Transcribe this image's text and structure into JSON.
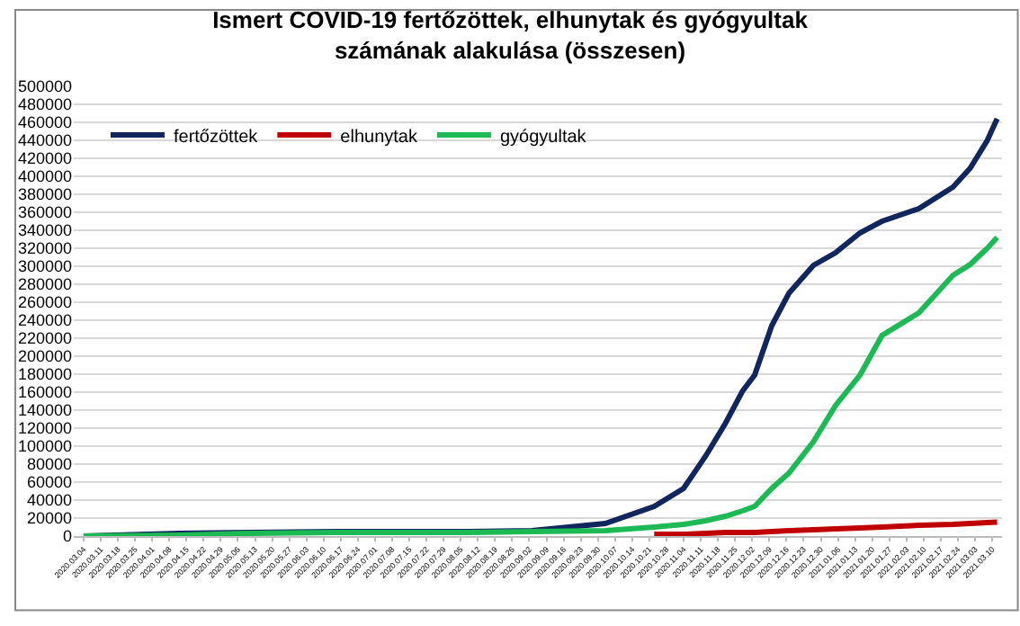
{
  "chart_data": {
    "type": "line",
    "title": "Ismert COVID-19 fertőzöttek, elhunytak és gyógyultak\nszámának alakulása (összesen)",
    "x": [
      "2020-03-04",
      "2020-04-12",
      "2020-05-11",
      "2020-06-15",
      "2020-08-08",
      "2020-09-03",
      "2020-10-03",
      "2020-10-23",
      "2020-11-04",
      "2020-11-13",
      "2020-11-21",
      "2020-11-28",
      "2020-12-03",
      "2020-12-10",
      "2020-12-17",
      "2020-12-27",
      "2021-01-05",
      "2021-01-15",
      "2021-01-24",
      "2021-02-08",
      "2021-02-22",
      "2021-03-01",
      "2021-03-08",
      "2021-03-12"
    ],
    "series": [
      {
        "name": "fertőzöttek",
        "color": "#12265e",
        "values": [
          0,
          3000,
          4000,
          5000,
          5000,
          6000,
          14000,
          33000,
          53000,
          89000,
          125000,
          161000,
          179000,
          234000,
          270000,
          301000,
          315000,
          337000,
          350000,
          364000,
          388000,
          409000,
          440000,
          464000
        ]
      },
      {
        "name": "elhunytak",
        "color": "#c00000",
        "values": [
          null,
          null,
          null,
          null,
          null,
          null,
          null,
          2000,
          2000,
          3000,
          4000,
          4000,
          4000,
          5000,
          6000,
          7000,
          8000,
          9000,
          10000,
          12000,
          13000,
          14000,
          15000,
          15500
        ]
      },
      {
        "name": "gyógyultak",
        "color": "#1db954",
        "values": [
          0,
          1000,
          3000,
          4000,
          4000,
          5000,
          6000,
          10000,
          13000,
          17000,
          22000,
          28000,
          33000,
          53000,
          70000,
          105000,
          145000,
          179000,
          223000,
          248000,
          290000,
          302000,
          320000,
          332000
        ]
      }
    ],
    "xlim": [
      "2020-02-29",
      "2021-03-14"
    ],
    "xticks": [
      {
        "value": "2020-03-04",
        "label": "2020.03.04"
      },
      {
        "value": "2020-03-11",
        "label": "2020.03.11"
      },
      {
        "value": "2020-03-18",
        "label": "2020.03.18"
      },
      {
        "value": "2020-03-25",
        "label": "2020.03.25"
      },
      {
        "value": "2020-04-01",
        "label": "2020.04.01"
      },
      {
        "value": "2020-04-08",
        "label": "2020.04.08"
      },
      {
        "value": "2020-04-15",
        "label": "2020.04.15"
      },
      {
        "value": "2020-04-22",
        "label": "2020.04.22"
      },
      {
        "value": "2020-04-29",
        "label": "2020.04.29"
      },
      {
        "value": "2020-05-06",
        "label": "2020.05.06"
      },
      {
        "value": "2020-05-13",
        "label": "2020.05.13"
      },
      {
        "value": "2020-05-20",
        "label": "2020.05.20"
      },
      {
        "value": "2020-05-27",
        "label": "2020.05.27"
      },
      {
        "value": "2020-06-03",
        "label": "2020.06.03"
      },
      {
        "value": "2020-06-10",
        "label": "2020.06.10"
      },
      {
        "value": "2020-06-17",
        "label": "2020.06.17"
      },
      {
        "value": "2020-06-24",
        "label": "2020.06.24"
      },
      {
        "value": "2020-07-01",
        "label": "2020.07.01"
      },
      {
        "value": "2020-07-08",
        "label": "2020.07.08"
      },
      {
        "value": "2020-07-15",
        "label": "2020.07.15"
      },
      {
        "value": "2020-07-22",
        "label": "2020.07.22"
      },
      {
        "value": "2020-07-29",
        "label": "2020.07.29"
      },
      {
        "value": "2020-08-05",
        "label": "2020.08.05"
      },
      {
        "value": "2020-08-12",
        "label": "2020.08.12"
      },
      {
        "value": "2020-08-19",
        "label": "2020.08.19"
      },
      {
        "value": "2020-08-26",
        "label": "2020.08.26"
      },
      {
        "value": "2020-09-02",
        "label": "2020.09.02"
      },
      {
        "value": "2020-09-09",
        "label": "2020.09.09"
      },
      {
        "value": "2020-09-16",
        "label": "2020.09.16"
      },
      {
        "value": "2020-09-23",
        "label": "2020.09.23"
      },
      {
        "value": "2020-09-30",
        "label": "2020.09.30"
      },
      {
        "value": "2020-10-07",
        "label": "2020.10.07"
      },
      {
        "value": "2020-10-14",
        "label": "2020.10.14"
      },
      {
        "value": "2020-10-21",
        "label": "2020.10.21"
      },
      {
        "value": "2020-10-28",
        "label": "2020.10.28"
      },
      {
        "value": "2020-11-04",
        "label": "2020.11.04"
      },
      {
        "value": "2020-11-11",
        "label": "2020.11.11"
      },
      {
        "value": "2020-11-18",
        "label": "2020.11.18"
      },
      {
        "value": "2020-11-25",
        "label": "2020.11.25"
      },
      {
        "value": "2020-12-02",
        "label": "2020.12.02"
      },
      {
        "value": "2020-12-09",
        "label": "2020.12.09"
      },
      {
        "value": "2020-12-16",
        "label": "2020.12.16"
      },
      {
        "value": "2020-12-23",
        "label": "2020.12.23"
      },
      {
        "value": "2020-12-30",
        "label": "2020.12.30"
      },
      {
        "value": "2021-01-06",
        "label": "2021.01.06"
      },
      {
        "value": "2021-01-13",
        "label": "2021.01.13"
      },
      {
        "value": "2021-01-20",
        "label": "2021.01.20"
      },
      {
        "value": "2021-01-27",
        "label": "2021.01.27"
      },
      {
        "value": "2021-02-03",
        "label": "2021.02.03"
      },
      {
        "value": "2021-02-10",
        "label": "2021.02.10"
      },
      {
        "value": "2021-02-17",
        "label": "2021.02.17"
      },
      {
        "value": "2021-02-24",
        "label": "2021.02.24"
      },
      {
        "value": "2021-03-03",
        "label": "2021.03.03"
      },
      {
        "value": "2021-03-10",
        "label": "2021.03.10"
      }
    ],
    "ylim": [
      0,
      500000
    ],
    "yticks": [
      0,
      20000,
      40000,
      60000,
      80000,
      100000,
      120000,
      140000,
      160000,
      180000,
      200000,
      220000,
      240000,
      260000,
      280000,
      300000,
      320000,
      340000,
      360000,
      380000,
      400000,
      420000,
      440000,
      460000,
      480000,
      500000
    ],
    "grid": "y",
    "legend": "top left",
    "line_style": "solid",
    "marker": "none"
  }
}
